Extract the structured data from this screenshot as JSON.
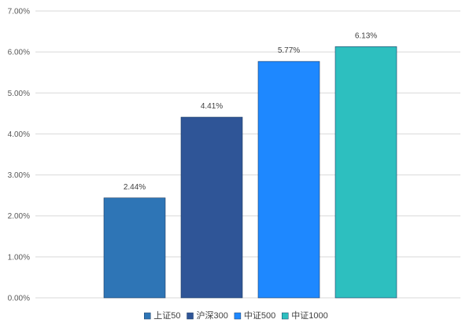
{
  "chart_data": {
    "type": "bar",
    "categories": [
      "上证50",
      "沪深300",
      "中证500",
      "中证1000"
    ],
    "values": [
      2.44,
      4.41,
      5.77,
      6.13
    ],
    "data_labels": [
      "2.44%",
      "4.41%",
      "5.77%",
      "6.13%"
    ],
    "colors": [
      "#2e75b6",
      "#2f5597",
      "#1e88ff",
      "#2dbfbf"
    ],
    "title": "",
    "xlabel": "",
    "ylabel": "",
    "ylim": [
      0,
      7
    ],
    "y_ticks": [
      0,
      1,
      2,
      3,
      4,
      5,
      6,
      7
    ],
    "y_tick_labels": [
      "0.00%",
      "1.00%",
      "2.00%",
      "3.00%",
      "4.00%",
      "5.00%",
      "6.00%",
      "7.00%"
    ],
    "grid": true,
    "legend_position": "bottom"
  }
}
